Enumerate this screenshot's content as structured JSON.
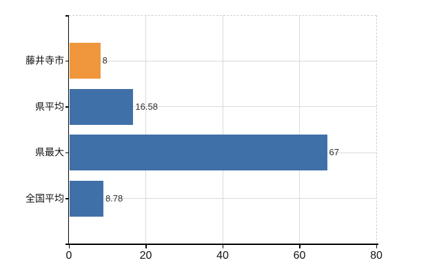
{
  "chart_data": {
    "type": "bar",
    "orientation": "horizontal",
    "title": "",
    "xlabel": "",
    "ylabel": "",
    "categories": [
      "藤井寺市",
      "県平均",
      "県最大",
      "全国平均"
    ],
    "values": [
      8,
      16.58,
      67,
      8.78
    ],
    "series": [
      {
        "name": "",
        "values": [
          8,
          16.58,
          67,
          8.78
        ]
      }
    ],
    "bar_colors": [
      "#f0973e",
      "#4070a8",
      "#4070a8",
      "#4070a8"
    ],
    "xlim": [
      0,
      80
    ],
    "x_ticks": [
      0,
      20,
      40,
      60,
      80
    ],
    "grid": true,
    "legend": "none",
    "colors": {
      "accent_orange": "#f0973e",
      "accent_blue": "#4070a8",
      "gridline": "#d9d9d9",
      "plot_border_dash": "#cbcfcb",
      "axis": "#000000",
      "text": "#111111",
      "value_text": "#2e2e2e",
      "background": "#ffffff"
    }
  }
}
